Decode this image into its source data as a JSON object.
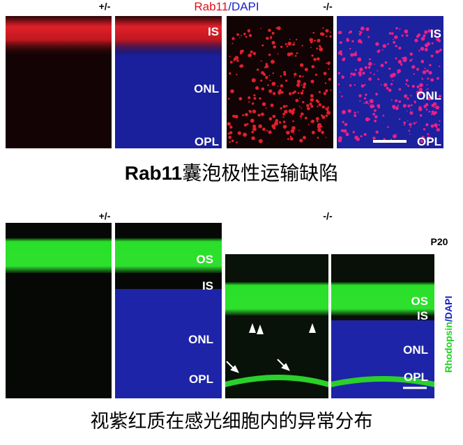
{
  "top": {
    "genotype_het": "+/-",
    "stain": {
      "marker": "Rab11",
      "separator": "/",
      "counterstain": "DAPI"
    },
    "genotype_ko": "-/-",
    "het_layers": [
      "IS",
      "ONL",
      "OPL"
    ],
    "ko_layers": [
      "IS",
      "ONL",
      "OPL"
    ],
    "caption": {
      "gene": "Rab11",
      "text": "囊泡极性运输缺陷"
    }
  },
  "bottom": {
    "genotype_het": "+/-",
    "genotype_ko": "-/-",
    "age": "P20",
    "het_layers": [
      "OS",
      "IS",
      "ONL",
      "OPL"
    ],
    "ko_layers": [
      "OS",
      "IS",
      "ONL",
      "OPL"
    ],
    "stain": {
      "marker": "Rhodopsin",
      "counterstain": "/DAPI"
    },
    "caption": "视紫红质在感光细胞内的异常分布"
  }
}
